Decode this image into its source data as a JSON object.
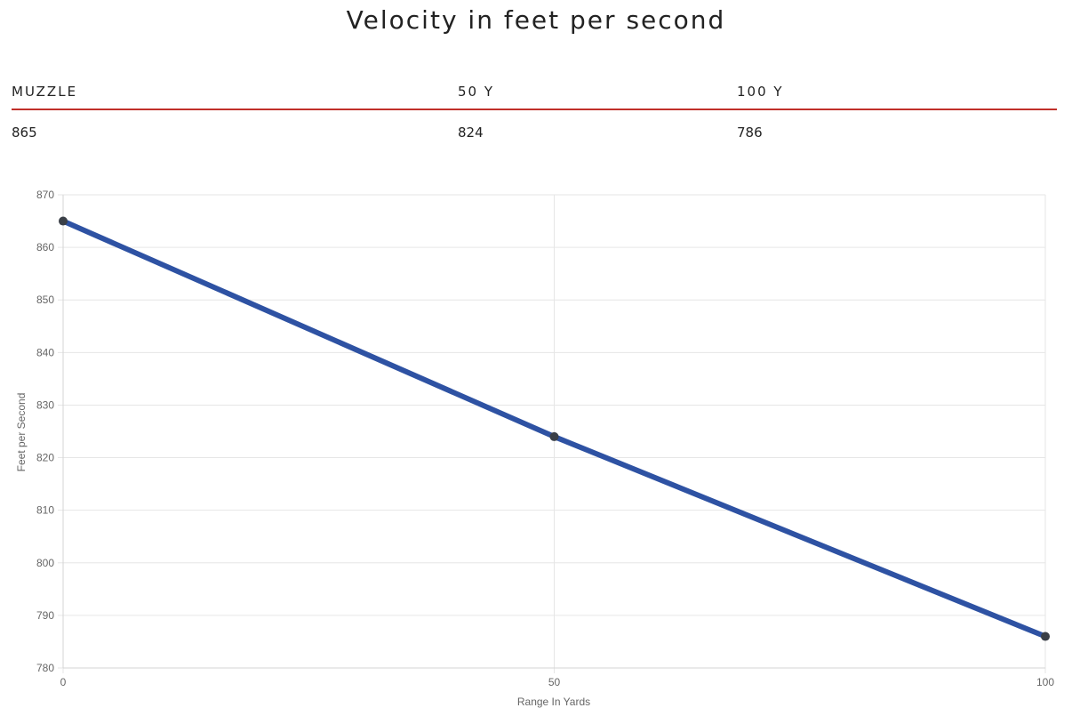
{
  "page": {
    "title": "Velocity in feet per second"
  },
  "table": {
    "headers": [
      "MUZZLE",
      "50 Y",
      "100 Y"
    ],
    "values": [
      "865",
      "824",
      "786"
    ]
  },
  "colors": {
    "line": "#2e52a3",
    "point": "#3a3f47",
    "table_rule": "#c0302a",
    "grid": "#e6e6e6"
  },
  "chart_data": {
    "type": "line",
    "title": "Velocity in feet per second",
    "xlabel": "Range In Yards",
    "ylabel": "Feet per Second",
    "x": [
      0,
      50,
      100
    ],
    "series": [
      {
        "values": [
          865,
          824,
          786
        ]
      }
    ],
    "xlim": [
      0,
      100
    ],
    "ylim": [
      780,
      870
    ],
    "xticks": [
      "0",
      "50",
      "100"
    ],
    "yticks": [
      "780",
      "790",
      "800",
      "810",
      "820",
      "830",
      "840",
      "850",
      "860",
      "870"
    ],
    "grid": true,
    "legend": "none"
  }
}
